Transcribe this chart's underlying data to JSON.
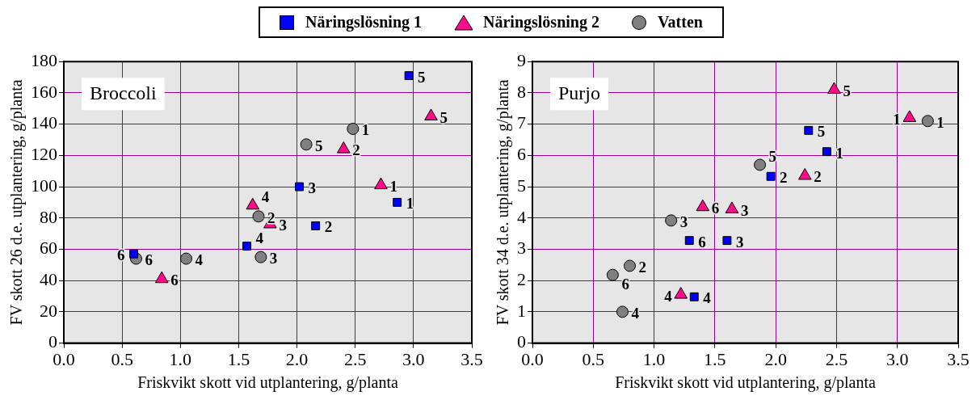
{
  "chart_data": [
    {
      "type": "scatter",
      "title": "Broccoli",
      "xlabel": "Friskvikt skott vid utplantering, g/planta",
      "ylabel": "FV skott 26 d.e. utplantering, g/planta",
      "xlim": [
        0,
        3.5
      ],
      "xticks": [
        {
          "value": 0,
          "label": "0.0"
        },
        0.5,
        {
          "value": 1,
          "label": "1.0"
        },
        1.5,
        {
          "value": 2,
          "label": "2.0"
        },
        2.5,
        {
          "value": 3,
          "label": "3.0"
        },
        3.5
      ],
      "ylim": [
        0,
        180
      ],
      "yticks": [
        0,
        20,
        40,
        60,
        80,
        100,
        120,
        140,
        160,
        180
      ],
      "grid": true,
      "legend": "top",
      "series": [
        {
          "name": "Näringslösning 1",
          "color": "#0000ff",
          "marker": "square",
          "x": [
            2.86,
            2.16,
            2.02,
            1.57,
            2.96,
            0.6
          ],
          "values": [
            90,
            75,
            100,
            62,
            171,
            57
          ]
        },
        {
          "name": "Näringslösning 2",
          "color": "#ff0a8c",
          "marker": "triangle",
          "x": [
            2.72,
            2.4,
            1.77,
            1.62,
            3.15,
            0.84
          ],
          "values": [
            101,
            124,
            76,
            88,
            145,
            41
          ]
        },
        {
          "name": "Vatten",
          "color": "#808080",
          "marker": "circle",
          "x": [
            2.48,
            1.67,
            1.69,
            1.05,
            2.08,
            0.62
          ],
          "values": [
            137,
            81,
            55,
            54,
            127,
            54
          ]
        }
      ],
      "annotations": [
        {
          "text": "1",
          "x": 2.86,
          "y": 90
        },
        {
          "text": "2",
          "x": 2.16,
          "y": 75
        },
        {
          "text": "3",
          "x": 2.02,
          "y": 100
        },
        {
          "text": "4",
          "x": 1.57,
          "y": 62
        },
        {
          "text": "5",
          "x": 2.96,
          "y": 171
        },
        {
          "text": "6",
          "x": 0.6,
          "y": 57
        },
        {
          "text": "1",
          "x": 2.72,
          "y": 101
        },
        {
          "text": "2",
          "x": 2.4,
          "y": 124
        },
        {
          "text": "3",
          "x": 1.77,
          "y": 76
        },
        {
          "text": "4",
          "x": 1.62,
          "y": 88
        },
        {
          "text": "5",
          "x": 3.15,
          "y": 145
        },
        {
          "text": "6",
          "x": 0.84,
          "y": 41
        },
        {
          "text": "1",
          "x": 2.48,
          "y": 137
        },
        {
          "text": "2",
          "x": 1.67,
          "y": 81
        },
        {
          "text": "3",
          "x": 1.69,
          "y": 55
        },
        {
          "text": "4",
          "x": 1.05,
          "y": 54
        },
        {
          "text": "5",
          "x": 2.08,
          "y": 127
        },
        {
          "text": "6",
          "x": 0.62,
          "y": 54
        }
      ]
    },
    {
      "type": "scatter",
      "title": "Purjo",
      "xlabel": "Friskvikt skott vid utplantering, g/planta",
      "ylabel": "FV skott 34 d.e. utplantering, g/planta",
      "xlim": [
        0,
        3.5
      ],
      "xticks": [
        {
          "value": 0,
          "label": "0.0"
        },
        0.5,
        {
          "value": 1,
          "label": "1.0"
        },
        1.5,
        {
          "value": 2,
          "label": "2.0"
        },
        2.5,
        {
          "value": 3,
          "label": "3.0"
        },
        3.5
      ],
      "ylim": [
        0,
        9
      ],
      "yticks": [
        0,
        1,
        2,
        3,
        4,
        5,
        6,
        7,
        8,
        9
      ],
      "grid": true,
      "legend": "top",
      "series": [
        {
          "name": "Näringslösning 1",
          "color": "#0000ff",
          "marker": "square",
          "x": [
            2.42,
            1.96,
            1.6,
            1.33,
            2.27,
            1.29
          ],
          "values": [
            6.12,
            5.33,
            3.28,
            1.48,
            6.8,
            3.28
          ]
        },
        {
          "name": "Näringslösning 2",
          "color": "#ff0a8c",
          "marker": "triangle",
          "x": [
            3.1,
            2.24,
            1.64,
            1.22,
            2.48,
            1.4
          ],
          "values": [
            7.2,
            5.35,
            4.28,
            1.55,
            8.1,
            4.35
          ]
        },
        {
          "name": "Vatten",
          "color": "#808080",
          "marker": "circle",
          "x": [
            3.25,
            0.8,
            1.14,
            0.74,
            1.87,
            0.66
          ],
          "values": [
            7.1,
            2.47,
            3.92,
            1.0,
            5.7,
            2.18
          ]
        }
      ],
      "annotations": [
        {
          "text": "1",
          "x": 2.42,
          "y": 6.12
        },
        {
          "text": "2",
          "x": 1.96,
          "y": 5.33
        },
        {
          "text": "3",
          "x": 1.6,
          "y": 3.28
        },
        {
          "text": "4",
          "x": 1.33,
          "y": 1.48
        },
        {
          "text": "5",
          "x": 2.27,
          "y": 6.8
        },
        {
          "text": "6",
          "x": 1.29,
          "y": 3.28
        },
        {
          "text": "1",
          "x": 3.1,
          "y": 7.2
        },
        {
          "text": "2",
          "x": 2.24,
          "y": 5.35
        },
        {
          "text": "3",
          "x": 1.64,
          "y": 4.28
        },
        {
          "text": "4",
          "x": 1.22,
          "y": 1.55
        },
        {
          "text": "5",
          "x": 2.48,
          "y": 8.1
        },
        {
          "text": "6",
          "x": 1.4,
          "y": 4.35
        },
        {
          "text": "1",
          "x": 3.25,
          "y": 7.1
        },
        {
          "text": "2",
          "x": 0.8,
          "y": 2.47
        },
        {
          "text": "3",
          "x": 1.14,
          "y": 3.92
        },
        {
          "text": "4",
          "x": 0.74,
          "y": 1.0
        },
        {
          "text": "5",
          "x": 1.87,
          "y": 5.7
        },
        {
          "text": "6",
          "x": 0.66,
          "y": 2.18
        }
      ]
    }
  ]
}
